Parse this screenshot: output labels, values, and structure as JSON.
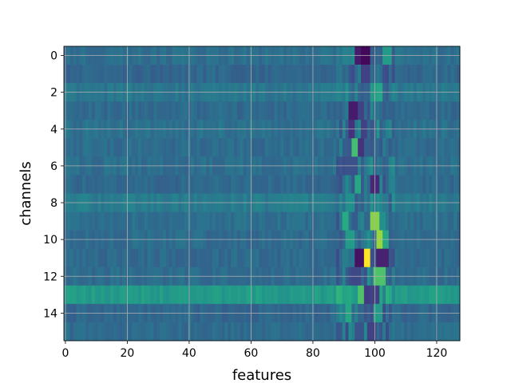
{
  "chart_data": {
    "type": "heatmap",
    "title": "",
    "xlabel": "features",
    "ylabel": "channels",
    "xlim": [
      -0.5,
      127.5
    ],
    "ylim": [
      15.5,
      -0.5
    ],
    "x_ticks": [
      0,
      20,
      40,
      60,
      80,
      100,
      120
    ],
    "x_tick_labels": [
      "0",
      "20",
      "40",
      "60",
      "80",
      "100",
      "120"
    ],
    "y_ticks": [
      0,
      2,
      4,
      6,
      8,
      10,
      12,
      14
    ],
    "y_tick_labels": [
      "0",
      "2",
      "4",
      "6",
      "8",
      "10",
      "12",
      "14"
    ],
    "n_rows": 16,
    "n_cols": 128,
    "colormap": "viridis",
    "grid": true,
    "grid_color": "#b0b0b0",
    "value_range": [
      0,
      1
    ],
    "baseline": [
      0.37,
      0.34,
      0.4,
      0.35,
      0.38,
      0.36,
      0.37,
      0.35,
      0.42,
      0.37,
      0.36,
      0.35,
      0.36,
      0.55,
      0.34,
      0.36
    ],
    "hotspots": [
      {
        "channel": 0,
        "start": 94,
        "end": 95,
        "value": 0.08
      },
      {
        "channel": 0,
        "start": 96,
        "end": 98,
        "value": 0.02
      },
      {
        "channel": 0,
        "start": 103,
        "end": 105,
        "value": 0.55
      },
      {
        "channel": 1,
        "start": 96,
        "end": 98,
        "value": 0.2
      },
      {
        "channel": 2,
        "start": 99,
        "end": 100,
        "value": 0.55
      },
      {
        "channel": 2,
        "start": 101,
        "end": 102,
        "value": 0.6
      },
      {
        "channel": 3,
        "start": 92,
        "end": 94,
        "value": 0.08
      },
      {
        "channel": 3,
        "start": 95,
        "end": 96,
        "value": 0.2
      },
      {
        "channel": 4,
        "start": 92,
        "end": 93,
        "value": 0.15
      },
      {
        "channel": 4,
        "start": 96,
        "end": 97,
        "value": 0.2
      },
      {
        "channel": 5,
        "start": 93,
        "end": 94,
        "value": 0.7
      },
      {
        "channel": 5,
        "start": 95,
        "end": 96,
        "value": 0.15
      },
      {
        "channel": 6,
        "start": 91,
        "end": 94,
        "value": 0.25
      },
      {
        "channel": 7,
        "start": 94,
        "end": 95,
        "value": 0.6
      },
      {
        "channel": 7,
        "start": 99,
        "end": 101,
        "value": 0.12
      },
      {
        "channel": 8,
        "start": 91,
        "end": 93,
        "value": 0.5
      },
      {
        "channel": 9,
        "start": 90,
        "end": 91,
        "value": 0.62
      },
      {
        "channel": 9,
        "start": 99,
        "end": 101,
        "value": 0.82
      },
      {
        "channel": 9,
        "start": 102,
        "end": 103,
        "value": 0.5
      },
      {
        "channel": 10,
        "start": 101,
        "end": 102,
        "value": 0.85
      },
      {
        "channel": 10,
        "start": 103,
        "end": 104,
        "value": 0.6
      },
      {
        "channel": 10,
        "start": 91,
        "end": 93,
        "value": 0.55
      },
      {
        "channel": 11,
        "start": 94,
        "end": 96,
        "value": 0.05
      },
      {
        "channel": 11,
        "start": 97,
        "end": 98,
        "value": 1.0
      },
      {
        "channel": 11,
        "start": 99,
        "end": 100,
        "value": 0.25
      },
      {
        "channel": 11,
        "start": 101,
        "end": 104,
        "value": 0.1
      },
      {
        "channel": 12,
        "start": 100,
        "end": 103,
        "value": 0.72
      },
      {
        "channel": 12,
        "start": 93,
        "end": 95,
        "value": 0.22
      },
      {
        "channel": 13,
        "start": 95,
        "end": 96,
        "value": 0.72
      },
      {
        "channel": 13,
        "start": 97,
        "end": 98,
        "value": 0.18
      },
      {
        "channel": 13,
        "start": 99,
        "end": 101,
        "value": 0.2
      },
      {
        "channel": 14,
        "start": 91,
        "end": 92,
        "value": 0.6
      },
      {
        "channel": 14,
        "start": 100,
        "end": 102,
        "value": 0.55
      },
      {
        "channel": 15,
        "start": 98,
        "end": 100,
        "value": 0.2
      }
    ]
  }
}
